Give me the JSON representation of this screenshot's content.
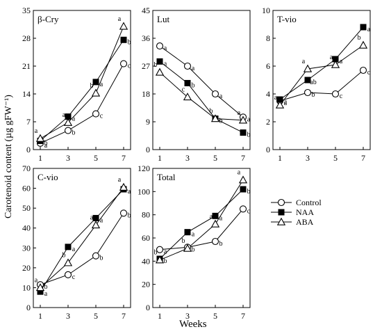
{
  "y_axis_label": "Carotenoid content (µg gFW⁻¹)",
  "x_axis_label": "Weeks",
  "legend": [
    {
      "name": "Control",
      "marker": "circle-open"
    },
    {
      "name": "NAA",
      "marker": "square-filled"
    },
    {
      "name": "ABA",
      "marker": "triangle-open"
    }
  ],
  "chart_data": [
    {
      "type": "line",
      "title": "β-Cry",
      "x": [
        1,
        3,
        5,
        7
      ],
      "ylim": [
        0,
        35
      ],
      "yticks": [
        0,
        7,
        14,
        21,
        28,
        35
      ],
      "series": [
        {
          "name": "Control",
          "values": [
            1.6,
            4.8,
            9.0,
            21.6
          ],
          "letters": [
            "a",
            "b",
            "c",
            "c"
          ]
        },
        {
          "name": "NAA",
          "values": [
            2.2,
            8.3,
            17.0,
            27.6
          ],
          "letters": [
            "b",
            "a",
            "a",
            "b"
          ]
        },
        {
          "name": "ABA",
          "values": [
            2.8,
            6.8,
            14.2,
            31.0
          ],
          "letters": [
            "a",
            "a",
            "b",
            "a"
          ]
        }
      ]
    },
    {
      "type": "line",
      "title": "Lut",
      "x": [
        1,
        3,
        5,
        7
      ],
      "ylim": [
        0,
        45
      ],
      "yticks": [
        0,
        9,
        18,
        27,
        36,
        45
      ],
      "series": [
        {
          "name": "Control",
          "values": [
            33.5,
            27.0,
            18.0,
            10.5
          ],
          "letters": [
            "a",
            "a",
            "a",
            "a"
          ]
        },
        {
          "name": "NAA",
          "values": [
            28.5,
            21.5,
            10.0,
            5.5
          ],
          "letters": [
            "a",
            "b",
            "b",
            "b"
          ]
        },
        {
          "name": "ABA",
          "values": [
            25.0,
            17.0,
            10.0,
            9.5
          ],
          "letters": [
            "b",
            "c",
            "b",
            "a"
          ]
        }
      ]
    },
    {
      "type": "line",
      "title": "T-vio",
      "x": [
        1,
        3,
        5,
        7
      ],
      "ylim": [
        0,
        10
      ],
      "yticks": [
        0,
        2,
        4,
        6,
        8,
        10
      ],
      "series": [
        {
          "name": "Control",
          "values": [
            3.5,
            4.1,
            4.0,
            5.7
          ],
          "letters": [
            "a",
            "b",
            "c",
            "c"
          ]
        },
        {
          "name": "NAA",
          "values": [
            3.6,
            5.0,
            6.5,
            8.8
          ],
          "letters": [
            "a",
            "ab",
            "a",
            "a"
          ]
        },
        {
          "name": "ABA",
          "values": [
            3.2,
            5.8,
            6.1,
            7.5
          ],
          "letters": [
            "a",
            "a",
            "a",
            "b"
          ]
        }
      ]
    },
    {
      "type": "line",
      "title": "C-vio",
      "x": [
        1,
        3,
        5,
        7
      ],
      "ylim": [
        0,
        70
      ],
      "yticks": [
        0,
        10,
        20,
        30,
        40,
        50,
        60,
        70
      ],
      "series": [
        {
          "name": "Control",
          "values": [
            11.5,
            16.5,
            26.0,
            47.5
          ],
          "letters": [
            "b",
            "c",
            "b",
            "b"
          ]
        },
        {
          "name": "NAA",
          "values": [
            8.0,
            30.5,
            45.0,
            59.5
          ],
          "letters": [
            "a",
            "a",
            "a",
            "a"
          ]
        },
        {
          "name": "ABA",
          "values": [
            10.0,
            22.5,
            41.5,
            60.5
          ],
          "letters": [
            "a",
            "b",
            "a",
            "a"
          ]
        }
      ]
    },
    {
      "type": "line",
      "title": "Total",
      "x": [
        1,
        3,
        5,
        7
      ],
      "ylim": [
        0,
        120
      ],
      "yticks": [
        0,
        20,
        40,
        60,
        80,
        100,
        120
      ],
      "series": [
        {
          "name": "Control",
          "values": [
            50.0,
            52.0,
            57.0,
            85.0
          ],
          "letters": [
            "a",
            "b",
            "b",
            "c"
          ]
        },
        {
          "name": "NAA",
          "values": [
            42.0,
            65.0,
            79.0,
            102.0
          ],
          "letters": [
            "b",
            "a",
            "a",
            "b"
          ]
        },
        {
          "name": "ABA",
          "values": [
            41.0,
            51.0,
            72.0,
            110.0
          ],
          "letters": [
            "b",
            "b",
            "a",
            "a"
          ]
        }
      ]
    }
  ]
}
